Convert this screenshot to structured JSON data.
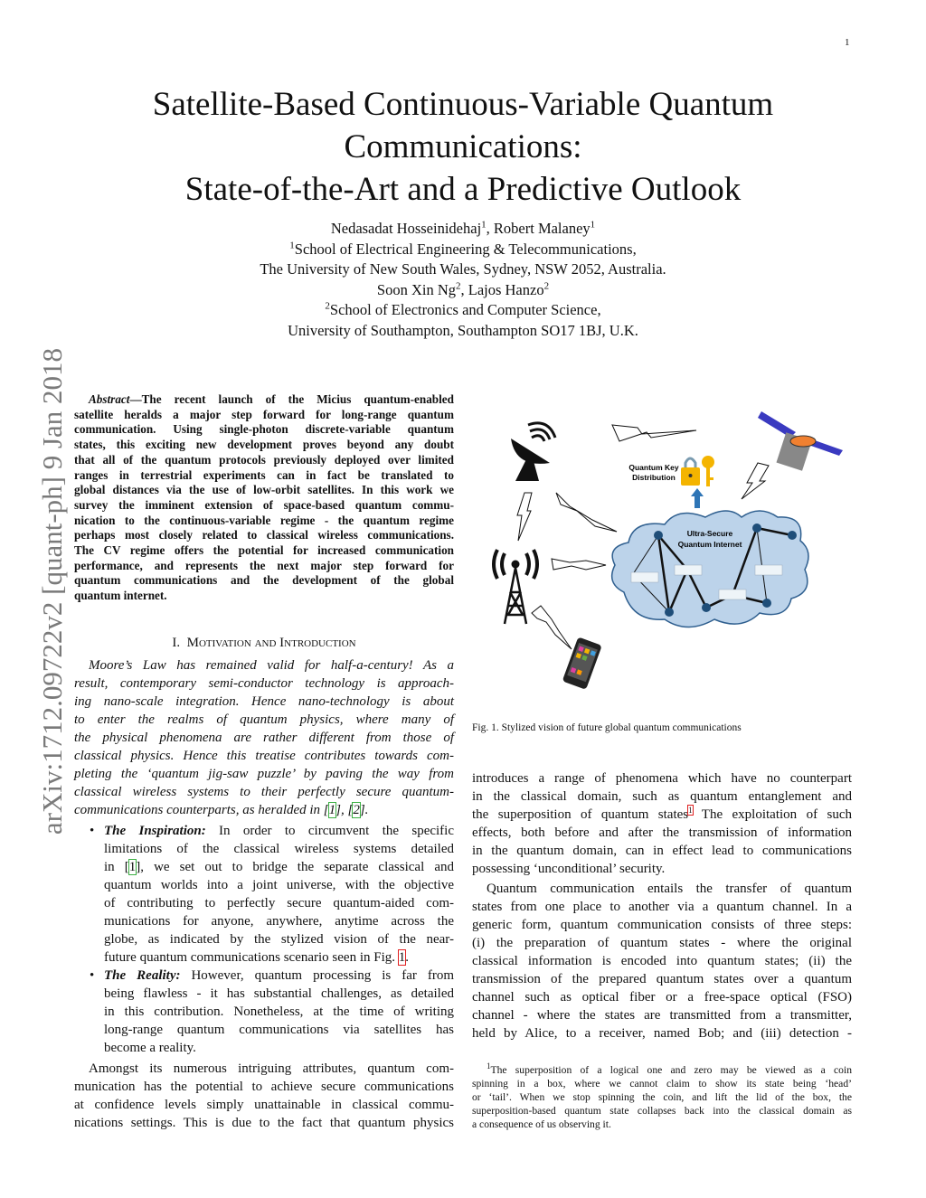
{
  "page_number": "1",
  "arxiv_id": "arXiv:1712.09722v2  [quant-ph]  9 Jan 2018",
  "title_lines": [
    "Satellite-Based Continuous-Variable Quantum",
    "Communications:",
    "State-of-the-Art and a Predictive Outlook"
  ],
  "authors": {
    "line1": {
      "names": "Nedasadat Hosseinidehaj",
      "sup1": "1",
      "sep": ", Robert Malaney",
      "sup2": "1"
    },
    "line2": {
      "sup": "1",
      "text": "School of Electrical Engineering & Telecommunications,"
    },
    "line3": "The University of New South Wales, Sydney, NSW 2052, Australia.",
    "line4": {
      "names": "Soon Xin Ng",
      "sup1": "2",
      "sep": ", Lajos Hanzo",
      "sup2": "2"
    },
    "line5": {
      "sup": "2",
      "text": "School of Electronics and Computer Science,"
    },
    "line6": "University of Southampton, Southampton SO17 1BJ, U.K."
  },
  "abstract": {
    "label": "Abstract",
    "lines": [
      [
        {
          "t": "Abstract",
          "s": "it"
        },
        {
          "t": "—The recent launch of the Micius quantum-enabled"
        }
      ],
      "satellite heralds a major step forward for long-range quantum",
      "communication. Using single-photon discrete-variable quantum",
      "states, this exciting new development proves beyond any doubt",
      "that all of the quantum protocols previously deployed over limited",
      "ranges in terrestrial experiments can in fact be translated to",
      "global distances via the use of low-orbit satellites. In this work we",
      "survey the imminent extension of space-based quantum commu-",
      "nication to the continuous-variable regime - the quantum regime",
      "perhaps most closely related to classical wireless communications.",
      "The CV regime offers the potential for increased communication",
      "performance, and represents the next major step forward for",
      "quantum communications and the development of the global",
      "quantum internet."
    ]
  },
  "section": {
    "number": "I.",
    "title_parts": [
      "M",
      "otivation and ",
      "I",
      "ntroduction"
    ]
  },
  "left_column": {
    "intro_italic": [
      "Moore’s Law has remained valid for half-a-century! As a",
      "result, contemporary semi-conductor technology is approach-",
      "ing nano-scale integration. Hence nano-technology is about",
      "to enter the realms of quantum physics, where many of",
      "the physical phenomena are rather different from those of",
      "classical physics. Hence this treatise contributes towards com-",
      "pleting the ‘quantum jig-saw puzzle’ by paving the way from",
      "classical wireless systems to their perfectly secure quantum-",
      [
        {
          "t": "communications counterparts, as heralded in ["
        },
        {
          "t": "1",
          "c": "green"
        },
        {
          "t": "], ["
        },
        {
          "t": "2",
          "c": "green"
        },
        {
          "t": "]."
        }
      ]
    ],
    "bullet_inspiration": [
      [
        {
          "t": "The Inspiration:",
          "s": "bi"
        },
        {
          "t": " In order to circumvent the specific"
        }
      ],
      "limitations of the classical wireless systems detailed",
      [
        {
          "t": "in ["
        },
        {
          "t": "1",
          "c": "green"
        },
        {
          "t": "], we set out to bridge the separate classical and"
        }
      ],
      "quantum worlds into a joint universe, with the objective",
      "of contributing to perfectly secure quantum-aided com-",
      "munications for anyone, anywhere, anytime across the",
      "globe, as indicated by the stylized vision of the near-",
      [
        {
          "t": "future quantum communications scenario seen in Fig. "
        },
        {
          "t": "1",
          "c": "red"
        },
        {
          "t": "."
        }
      ]
    ],
    "bullet_reality": [
      [
        {
          "t": "The Reality:",
          "s": "bi"
        },
        {
          "t": " However, quantum processing is far from"
        }
      ],
      "being flawless - it has substantial challenges, as detailed",
      "in this contribution. Nonetheless, at the time of writing",
      "long-range quantum communications via satellites has",
      "become a reality."
    ],
    "para_amongst": [
      "Amongst its numerous intriguing attributes, quantum com-",
      "munication has the potential to achieve secure communications",
      "at confidence levels simply unattainable in classical commu-",
      "nications settings. This is due to the fact that quantum physics"
    ]
  },
  "figure": {
    "qkd_label": [
      "Quantum Key",
      "Distribution"
    ],
    "cloud_label": [
      "Ultra-Secure",
      "Quantum Internet"
    ],
    "caption": "Fig. 1.   Stylized vision of future global quantum communications",
    "colors": {
      "cloud": "#bcd3ea",
      "cloud_stroke": "#2f5f8f",
      "node": "#1f4e79",
      "lock": "#f4b400",
      "arrow": "#2e75b6"
    }
  },
  "right_column": {
    "para_intro": [
      "introduces a range of phenomena which have no counterpart",
      "in the classical domain, such as quantum entanglement and",
      [
        {
          "t": "the superposition of quantum states"
        },
        {
          "t": "1",
          "c": "red",
          "sup": true
        },
        {
          "t": " The exploitation of such"
        }
      ],
      "effects, both before and after the transmission of information",
      "in the quantum domain, can in effect lead to communications",
      "possessing ‘unconditional’ security."
    ],
    "para_quantum": [
      "Quantum communication entails the transfer of quantum",
      "states from one place to another via a quantum channel. In a",
      "generic form, quantum communication consists of three steps:",
      "(i) the preparation of quantum states - where the original",
      "classical information is encoded into quantum states; (ii) the",
      "transmission of the prepared quantum states over a quantum",
      "channel such as optical fiber or a free-space optical (FSO)",
      "channel - where the states are transmitted from a transmitter,",
      "held by Alice, to a receiver, named Bob; and (iii) detection -"
    ],
    "footnote": [
      [
        {
          "t": "1",
          "sup": true
        },
        {
          "t": "The superposition of a logical one and zero may be viewed as a coin"
        }
      ],
      "spinning in a box, where we cannot claim to show its state being ‘head’",
      "or ‘tail’. When we stop spinning the coin, and lift the lid of the box, the",
      "superposition-based quantum state collapses back into the classical domain as",
      "a consequence of us observing it."
    ]
  }
}
